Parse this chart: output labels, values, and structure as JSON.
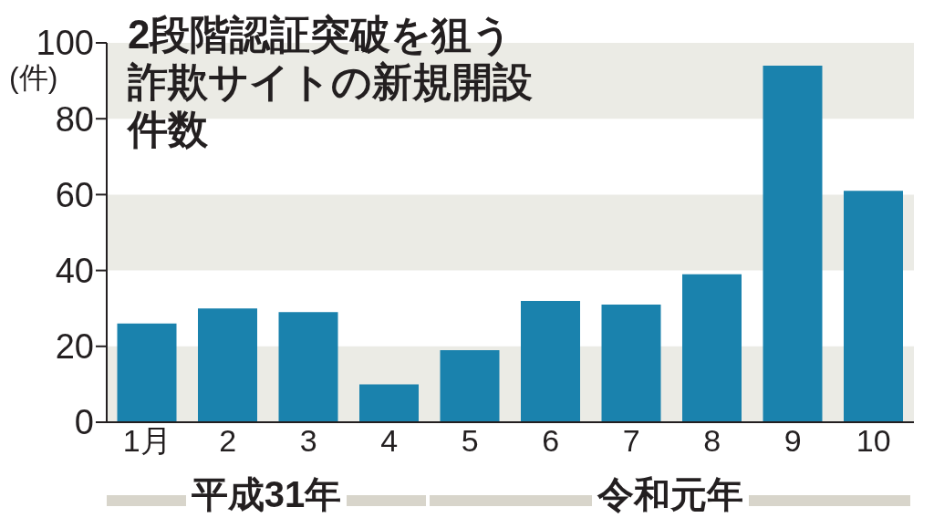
{
  "chart_data": {
    "type": "bar",
    "title": "2段階認証突破を狙う詐欺サイトの新規開設件数",
    "ylabel": "(件)",
    "categories": [
      "1月",
      "2",
      "3",
      "4",
      "5",
      "6",
      "7",
      "8",
      "9",
      "10"
    ],
    "values": [
      26,
      30,
      29,
      10,
      19,
      32,
      31,
      39,
      94,
      61
    ],
    "color": "#1a82ad",
    "ylim": [
      0,
      100
    ],
    "yticks": [
      0,
      20,
      40,
      60,
      80,
      100
    ],
    "bands": [
      {
        "axis": "y",
        "from": 0,
        "to": 20,
        "color": "#ebebe5"
      },
      {
        "axis": "y",
        "from": 40,
        "to": 60,
        "color": "#ebebe5"
      },
      {
        "axis": "y",
        "from": 80,
        "to": 100,
        "color": "#ebebe5"
      }
    ],
    "legend": false,
    "annotations": [
      "平成31年",
      "令和元年"
    ]
  }
}
